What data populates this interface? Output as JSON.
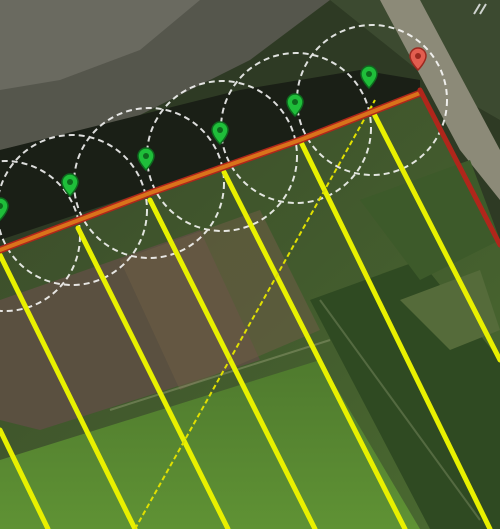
{
  "map": {
    "style": "satellite",
    "colors": {
      "track_line": "#e8f000",
      "diagonal_line": "#e0e000",
      "boundary_orange": "#d9731b",
      "boundary_red": "#b0261b",
      "marker_green": "#1fbe3a",
      "marker_red": "#e25d4f",
      "coverage_circle": "#ffffff"
    },
    "markers": [
      {
        "id": "waypoint-1",
        "color": "green",
        "icon": "map-pin-icon"
      },
      {
        "id": "waypoint-2",
        "color": "green",
        "icon": "map-pin-icon"
      },
      {
        "id": "waypoint-3",
        "color": "green",
        "icon": "map-pin-icon"
      },
      {
        "id": "waypoint-4",
        "color": "green",
        "icon": "map-pin-icon"
      },
      {
        "id": "waypoint-5",
        "color": "green",
        "icon": "map-pin-icon"
      },
      {
        "id": "waypoint-6",
        "color": "green",
        "icon": "map-pin-icon"
      },
      {
        "id": "waypoint-7",
        "color": "green",
        "icon": "map-pin-icon"
      },
      {
        "id": "waypoint-end",
        "color": "red",
        "icon": "map-pin-icon"
      }
    ]
  }
}
